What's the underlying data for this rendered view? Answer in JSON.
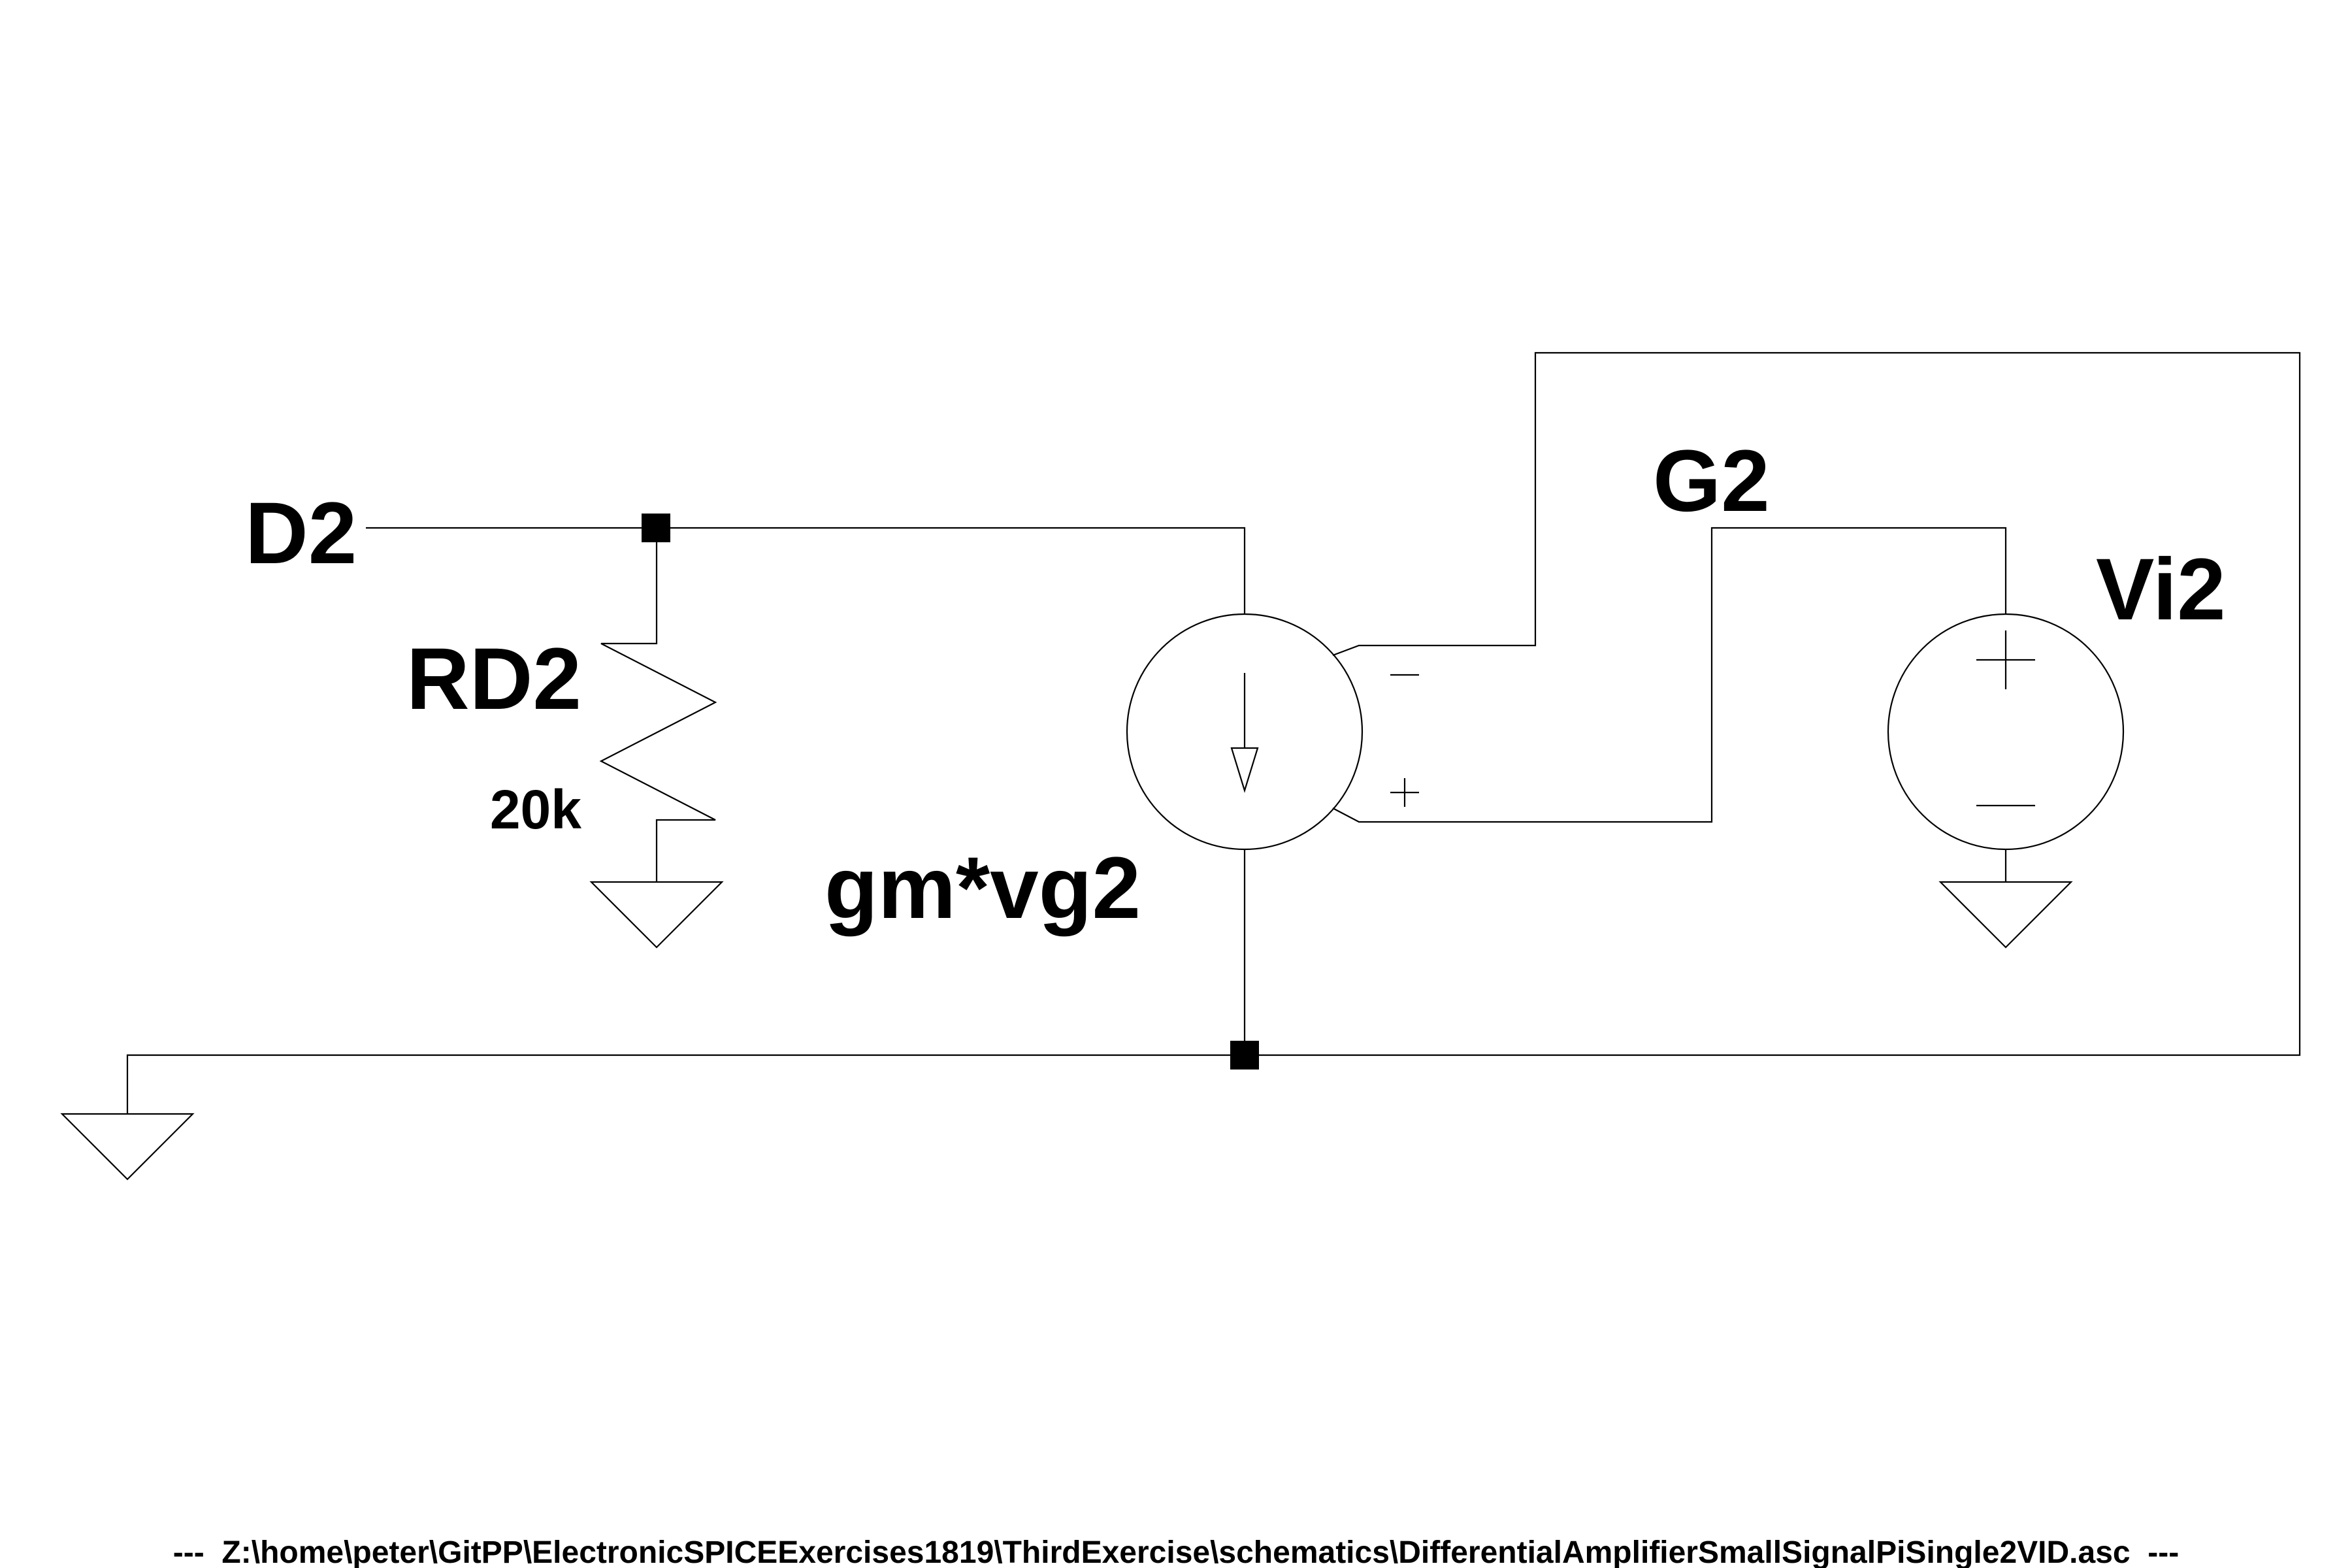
{
  "labels": {
    "net_d2": "D2",
    "net_g2": "G2",
    "resistor_name": "RD2",
    "resistor_value": "20k",
    "source_expr": "gm*vg2",
    "vsource_name": "Vi2"
  },
  "footer": {
    "path_text": "---  Z:\\home\\peter\\GitPP\\ElectronicSPICEExercises1819\\ThirdExercise\\schematics\\DifferentialAmplifierSmallSignalPiSingle2VID.asc  ---"
  }
}
